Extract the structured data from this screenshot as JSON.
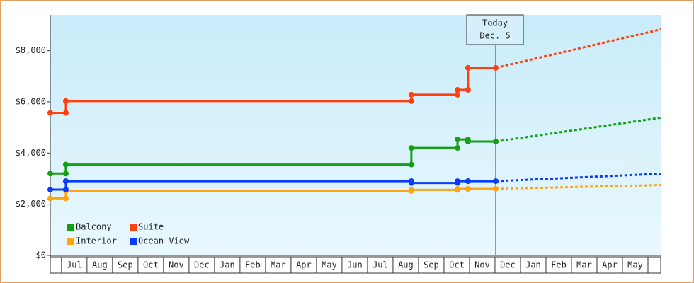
{
  "chart_data": {
    "type": "line",
    "x": [
      -0.44,
      0.17,
      0.17,
      13.72,
      13.72,
      15.53,
      15.53,
      15.94,
      15.94,
      17.03
    ],
    "xlim": [
      -0.44,
      23.5
    ],
    "xticks": [
      {
        "value": 0.5,
        "label": "Jul"
      },
      {
        "value": 1.5,
        "label": "Aug"
      },
      {
        "value": 2.5,
        "label": "Sep"
      },
      {
        "value": 3.5,
        "label": "Oct"
      },
      {
        "value": 4.5,
        "label": "Nov"
      },
      {
        "value": 5.5,
        "label": "Dec"
      },
      {
        "value": 6.5,
        "label": "Jan"
      },
      {
        "value": 7.5,
        "label": "Feb"
      },
      {
        "value": 8.5,
        "label": "Mar"
      },
      {
        "value": 9.5,
        "label": "Apr"
      },
      {
        "value": 10.5,
        "label": "May"
      },
      {
        "value": 11.5,
        "label": "Jun"
      },
      {
        "value": 12.5,
        "label": "Jul"
      },
      {
        "value": 13.5,
        "label": "Aug"
      },
      {
        "value": 14.5,
        "label": "Sep"
      },
      {
        "value": 15.5,
        "label": "Oct"
      },
      {
        "value": 16.5,
        "label": "Nov"
      },
      {
        "value": 17.5,
        "label": "Dec"
      },
      {
        "value": 18.5,
        "label": "Jan"
      },
      {
        "value": 19.5,
        "label": "Feb"
      },
      {
        "value": 20.5,
        "label": "Mar"
      },
      {
        "value": 21.5,
        "label": "Apr"
      },
      {
        "value": 22.5,
        "label": "May"
      }
    ],
    "ylim": [
      0,
      9400
    ],
    "yticks": [
      {
        "value": 0,
        "label": "$0"
      },
      {
        "value": 2000,
        "label": "$2,000"
      },
      {
        "value": 4000,
        "label": "$4,000"
      },
      {
        "value": 6000,
        "label": "$6,000"
      },
      {
        "value": 8000,
        "label": "$8,000"
      }
    ],
    "forecast_x": [
      17.03,
      23.5
    ],
    "series": [
      {
        "name": "Balcony",
        "color": "#14a014",
        "values": [
          3200,
          3200,
          3550,
          3550,
          4200,
          4200,
          4530,
          4530,
          4450,
          4450
        ],
        "forecast_values": [
          4450,
          5380
        ]
      },
      {
        "name": "Suite",
        "color": "#ff4010",
        "values": [
          5570,
          5570,
          6030,
          6030,
          6280,
          6280,
          6470,
          6470,
          7330,
          7330
        ],
        "forecast_values": [
          7330,
          8830
        ]
      },
      {
        "name": "Interior",
        "color": "#ffa510",
        "values": [
          2230,
          2230,
          2520,
          2520,
          2560,
          2560,
          2600,
          2600,
          2600,
          2600
        ],
        "forecast_values": [
          2600,
          2750
        ]
      },
      {
        "name": "Ocean View",
        "color": "#0a3cff",
        "values": [
          2570,
          2570,
          2900,
          2900,
          2830,
          2830,
          2900,
          2900,
          2900,
          2900
        ],
        "forecast_values": [
          2900,
          3190
        ]
      }
    ],
    "today": {
      "x": 17.03,
      "label": [
        "Today",
        "Dec. 5"
      ]
    },
    "legend": "lower-left"
  }
}
